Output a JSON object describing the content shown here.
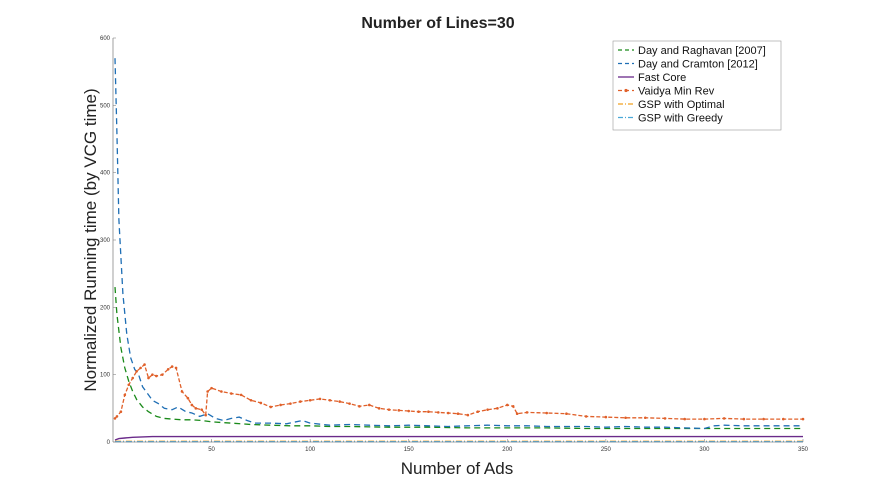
{
  "chart_data": {
    "type": "line",
    "title": "Number of Lines=30",
    "xlabel": "Number of Ads",
    "ylabel": "Normalized Running time (by VCG time)",
    "xlim": [
      0,
      350
    ],
    "ylim": [
      0,
      600
    ],
    "xticks": [
      50,
      100,
      150,
      200,
      250,
      300,
      350
    ],
    "yticks": [
      0,
      100,
      200,
      300,
      400,
      500,
      600
    ],
    "grid": false,
    "legend_position": "top-right",
    "series": [
      {
        "name": "Day and Raghavan [2007]",
        "color": "#1a8a1a",
        "style": "dashed",
        "points": [
          [
            1,
            230
          ],
          [
            2,
            190
          ],
          [
            4,
            140
          ],
          [
            6,
            110
          ],
          [
            8,
            90
          ],
          [
            10,
            75
          ],
          [
            12,
            63
          ],
          [
            15,
            52
          ],
          [
            18,
            45
          ],
          [
            22,
            38
          ],
          [
            26,
            35
          ],
          [
            30,
            34
          ],
          [
            35,
            33
          ],
          [
            40,
            33
          ],
          [
            45,
            32
          ],
          [
            50,
            30
          ],
          [
            55,
            29
          ],
          [
            60,
            28
          ],
          [
            65,
            27
          ],
          [
            70,
            26
          ],
          [
            80,
            25
          ],
          [
            90,
            24
          ],
          [
            100,
            24
          ],
          [
            110,
            23
          ],
          [
            120,
            23
          ],
          [
            140,
            22
          ],
          [
            160,
            22
          ],
          [
            180,
            21
          ],
          [
            200,
            21
          ],
          [
            220,
            21
          ],
          [
            240,
            20
          ],
          [
            260,
            20
          ],
          [
            280,
            20
          ],
          [
            300,
            20
          ],
          [
            320,
            20
          ],
          [
            340,
            20
          ],
          [
            350,
            20
          ]
        ]
      },
      {
        "name": "Day and Cramton [2012]",
        "color": "#1f6fb5",
        "style": "dashed",
        "points": [
          [
            1,
            570
          ],
          [
            2,
            460
          ],
          [
            3,
            330
          ],
          [
            5,
            220
          ],
          [
            7,
            160
          ],
          [
            9,
            125
          ],
          [
            11,
            108
          ],
          [
            13,
            100
          ],
          [
            15,
            82
          ],
          [
            18,
            70
          ],
          [
            20,
            62
          ],
          [
            23,
            57
          ],
          [
            26,
            50
          ],
          [
            30,
            48
          ],
          [
            33,
            52
          ],
          [
            37,
            45
          ],
          [
            40,
            43
          ],
          [
            44,
            38
          ],
          [
            48,
            42
          ],
          [
            52,
            35
          ],
          [
            56,
            32
          ],
          [
            60,
            35
          ],
          [
            64,
            37
          ],
          [
            68,
            32
          ],
          [
            72,
            28
          ],
          [
            80,
            28
          ],
          [
            88,
            27
          ],
          [
            96,
            32
          ],
          [
            100,
            28
          ],
          [
            110,
            25
          ],
          [
            120,
            26
          ],
          [
            130,
            25
          ],
          [
            140,
            24
          ],
          [
            150,
            25
          ],
          [
            160,
            24
          ],
          [
            170,
            23
          ],
          [
            180,
            24
          ],
          [
            190,
            25
          ],
          [
            200,
            24
          ],
          [
            210,
            24
          ],
          [
            220,
            23
          ],
          [
            230,
            23
          ],
          [
            240,
            23
          ],
          [
            250,
            22
          ],
          [
            260,
            23
          ],
          [
            270,
            22
          ],
          [
            280,
            22
          ],
          [
            290,
            21
          ],
          [
            300,
            20
          ],
          [
            305,
            24
          ],
          [
            310,
            25
          ],
          [
            320,
            24
          ],
          [
            330,
            24
          ],
          [
            340,
            24
          ],
          [
            350,
            24
          ]
        ]
      },
      {
        "name": "Fast Core",
        "color": "#6a2a8a",
        "style": "solid",
        "points": [
          [
            1,
            3
          ],
          [
            3,
            5
          ],
          [
            6,
            6
          ],
          [
            10,
            7
          ],
          [
            20,
            8
          ],
          [
            40,
            8
          ],
          [
            80,
            8
          ],
          [
            150,
            8
          ],
          [
            250,
            8
          ],
          [
            350,
            8
          ]
        ]
      },
      {
        "name": "Vaidya Min Rev",
        "color": "#e0602a",
        "style": "dash-marker",
        "points": [
          [
            1,
            35
          ],
          [
            2,
            38
          ],
          [
            4,
            45
          ],
          [
            6,
            70
          ],
          [
            8,
            85
          ],
          [
            10,
            95
          ],
          [
            12,
            105
          ],
          [
            14,
            110
          ],
          [
            16,
            115
          ],
          [
            18,
            95
          ],
          [
            20,
            100
          ],
          [
            22,
            98
          ],
          [
            25,
            100
          ],
          [
            28,
            108
          ],
          [
            30,
            112
          ],
          [
            32,
            110
          ],
          [
            35,
            75
          ],
          [
            38,
            65
          ],
          [
            40,
            55
          ],
          [
            42,
            50
          ],
          [
            45,
            48
          ],
          [
            47,
            40
          ],
          [
            48,
            75
          ],
          [
            50,
            80
          ],
          [
            55,
            75
          ],
          [
            60,
            72
          ],
          [
            65,
            70
          ],
          [
            70,
            62
          ],
          [
            75,
            58
          ],
          [
            80,
            52
          ],
          [
            85,
            55
          ],
          [
            90,
            57
          ],
          [
            95,
            60
          ],
          [
            100,
            62
          ],
          [
            105,
            64
          ],
          [
            110,
            62
          ],
          [
            115,
            60
          ],
          [
            120,
            57
          ],
          [
            125,
            53
          ],
          [
            130,
            55
          ],
          [
            135,
            50
          ],
          [
            140,
            48
          ],
          [
            145,
            47
          ],
          [
            150,
            46
          ],
          [
            155,
            45
          ],
          [
            160,
            45
          ],
          [
            165,
            44
          ],
          [
            170,
            43
          ],
          [
            175,
            42
          ],
          [
            180,
            40
          ],
          [
            185,
            45
          ],
          [
            190,
            48
          ],
          [
            195,
            50
          ],
          [
            200,
            55
          ],
          [
            203,
            53
          ],
          [
            205,
            42
          ],
          [
            210,
            44
          ],
          [
            220,
            43
          ],
          [
            230,
            42
          ],
          [
            240,
            38
          ],
          [
            250,
            37
          ],
          [
            260,
            36
          ],
          [
            270,
            36
          ],
          [
            280,
            35
          ],
          [
            290,
            34
          ],
          [
            300,
            34
          ],
          [
            310,
            35
          ],
          [
            320,
            34
          ],
          [
            330,
            34
          ],
          [
            340,
            34
          ],
          [
            350,
            34
          ]
        ]
      },
      {
        "name": "GSP with Optimal",
        "color": "#f0a020",
        "style": "dash-dot",
        "points": [
          [
            1,
            1
          ],
          [
            50,
            1
          ],
          [
            100,
            1
          ],
          [
            150,
            1
          ],
          [
            200,
            1
          ],
          [
            250,
            1
          ],
          [
            300,
            1
          ],
          [
            350,
            1
          ]
        ]
      },
      {
        "name": "GSP with Greedy",
        "color": "#4aa8d8",
        "style": "dash-dot",
        "points": [
          [
            1,
            0.5
          ],
          [
            50,
            0.5
          ],
          [
            100,
            0.5
          ],
          [
            150,
            0.5
          ],
          [
            200,
            0.5
          ],
          [
            250,
            0.5
          ],
          [
            300,
            0.5
          ],
          [
            350,
            0.5
          ]
        ]
      }
    ]
  }
}
